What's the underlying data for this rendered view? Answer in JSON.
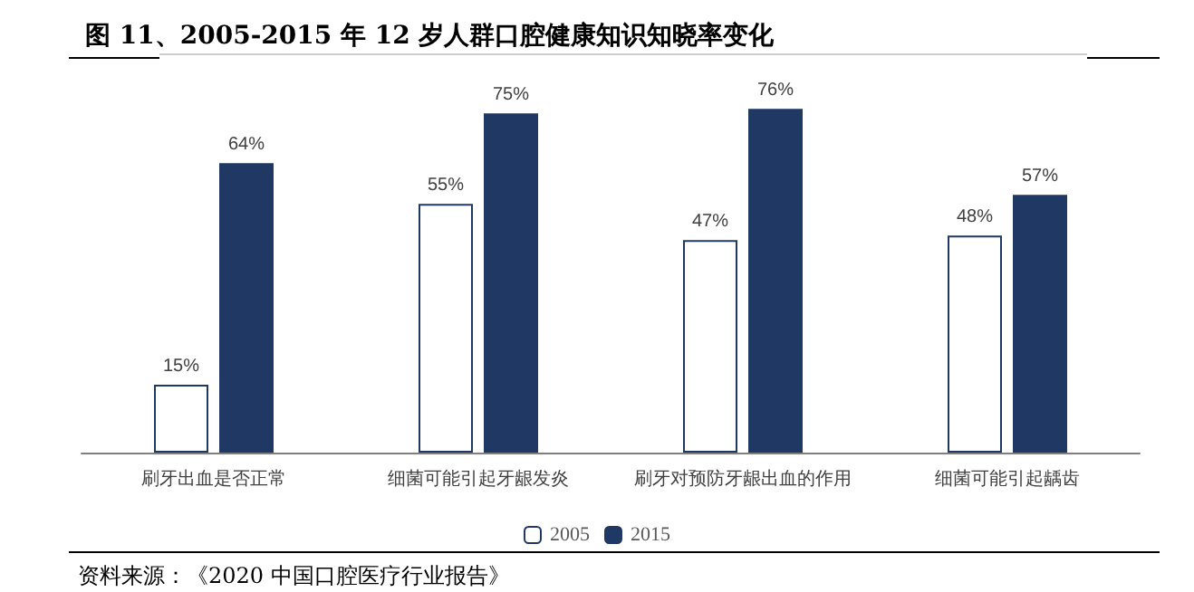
{
  "chart_data": {
    "type": "bar",
    "title": "图 11、2005-2015 年 12 岁人群口腔健康知识知晓率变化",
    "categories": [
      "刷牙出血是否正常",
      "细菌可能引起牙龈发炎",
      "刷牙对预防牙龈出血的作用",
      "细菌可能引起龋齿"
    ],
    "series": [
      {
        "name": "2005",
        "color": "#ffffff",
        "values": [
          15,
          55,
          47,
          48
        ],
        "value_labels": [
          "15%",
          "55%",
          "47%",
          "48%"
        ]
      },
      {
        "name": "2015",
        "color": "#1f3864",
        "values": [
          64,
          75,
          76,
          57
        ],
        "value_labels": [
          "64%",
          "75%",
          "76%",
          "57%"
        ]
      }
    ],
    "legend": "bottom",
    "grid": false,
    "annotations": [
      "资料来源：《2020 中国口腔医疗行业报告》"
    ]
  }
}
